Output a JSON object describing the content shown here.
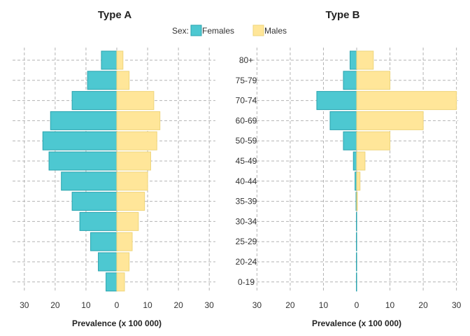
{
  "legend": {
    "title": "Sex:",
    "position": "top",
    "entries": [
      {
        "name": "Females",
        "color": "#4DC8D1",
        "border": "#2AA3AE"
      },
      {
        "name": "Males",
        "color": "#FFE699",
        "border": "#EED57C"
      }
    ]
  },
  "chart_data": [
    {
      "type": "bar",
      "orientation": "horizontal-population-pyramid",
      "title": "Type A",
      "xlabel": "Prevalence (x 100 000)",
      "xlim": [
        -32,
        32
      ],
      "x_ticks": [
        -30,
        -20,
        -10,
        0,
        10,
        20,
        30
      ],
      "x_tick_labels": [
        "30",
        "20",
        "10",
        "0",
        "10",
        "20",
        "30"
      ],
      "grid": true,
      "categories": [
        "0-19",
        "20-24",
        "25-29",
        "30-34",
        "35-39",
        "40-44",
        "45-49",
        "50-59",
        "60-69",
        "70-74",
        "75-79",
        "80+"
      ],
      "series": [
        {
          "name": "Females",
          "values": [
            3.5,
            6,
            8.5,
            12,
            14.5,
            18,
            22,
            24,
            21.5,
            14.5,
            9.5,
            5
          ]
        },
        {
          "name": "Males",
          "values": [
            2.5,
            4,
            5,
            7,
            9,
            10,
            11,
            13,
            14,
            12,
            4,
            2
          ]
        }
      ]
    },
    {
      "type": "bar",
      "orientation": "horizontal-population-pyramid",
      "title": "Type B",
      "xlabel": "Prevalence (x 100 000)",
      "xlim": [
        -30.5,
        30.5
      ],
      "x_ticks": [
        -30,
        -20,
        -10,
        0,
        10,
        20,
        30
      ],
      "x_tick_labels": [
        "30",
        "20",
        "10",
        "0",
        "10",
        "20",
        "30"
      ],
      "grid": true,
      "categories": [
        "0-19",
        "20-24",
        "25-29",
        "30-34",
        "35-39",
        "40-44",
        "45-49",
        "50-59",
        "60-69",
        "70-74",
        "75-79",
        "80+"
      ],
      "series": [
        {
          "name": "Females",
          "values": [
            0.1,
            0.1,
            0.1,
            0.1,
            0.2,
            0.5,
            1,
            4,
            8,
            12,
            4,
            2
          ]
        },
        {
          "name": "Males",
          "values": [
            0,
            0,
            0,
            0,
            0.2,
            1,
            2.5,
            10,
            20,
            30,
            10,
            5
          ]
        }
      ]
    }
  ]
}
